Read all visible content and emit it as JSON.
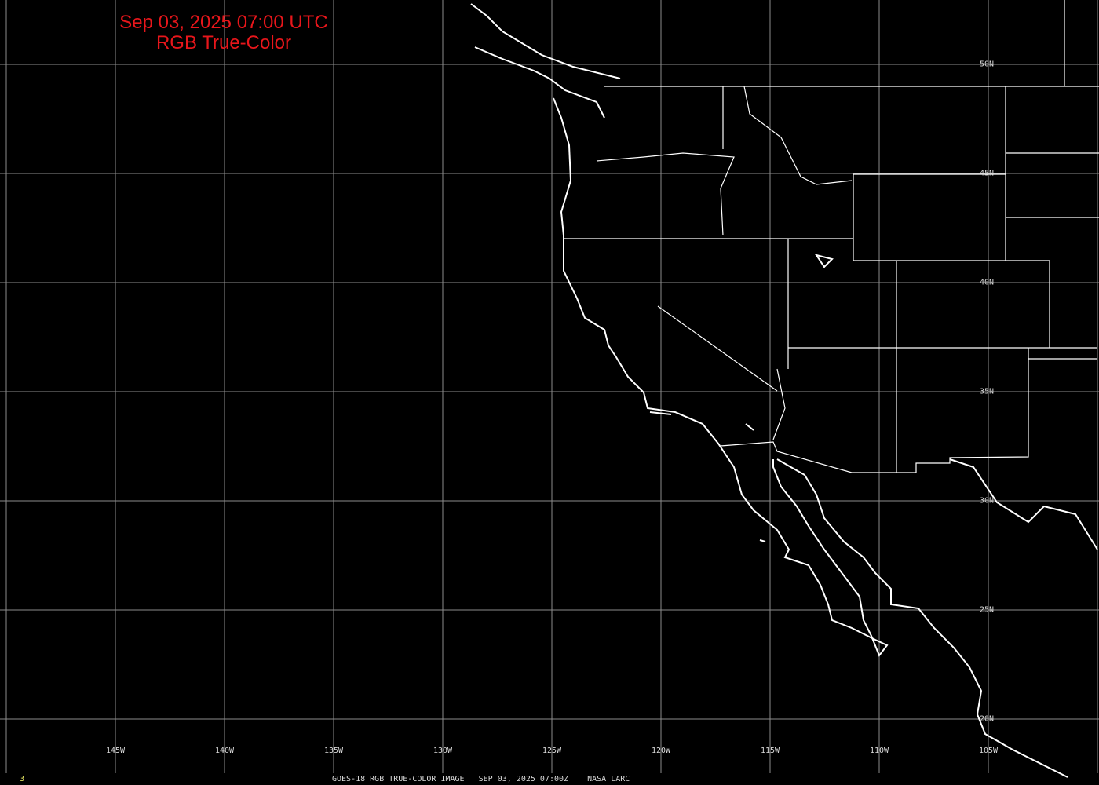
{
  "title": {
    "line1": "Sep 03, 2025 07:00 UTC",
    "line2": "RGB True-Color"
  },
  "longitudes": [
    "145W",
    "140W",
    "135W",
    "130W",
    "125W",
    "120W",
    "115W",
    "110W",
    "105W"
  ],
  "latitudes": [
    "50N",
    "45N",
    "40N",
    "35N",
    "30N",
    "25N",
    "20N"
  ],
  "footer": {
    "frame": "3",
    "caption": "GOES-18 RGB TRUE-COLOR IMAGE   SEP 03, 2025 07:00Z    NASA LARC"
  },
  "colors": {
    "title": "#e8161b",
    "grid": "#8c8c8c",
    "coast": "#ffffff",
    "frame_number": "#e0e060",
    "background": "#000000"
  }
}
